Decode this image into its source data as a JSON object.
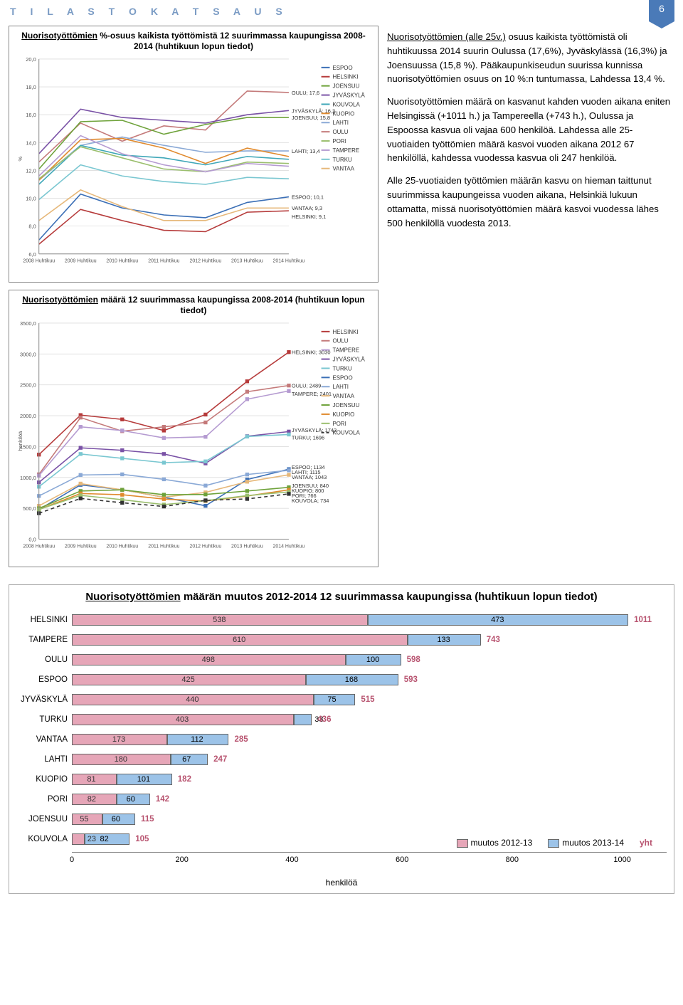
{
  "page_number": "6",
  "header": "T I L A S T O K A T S A U S",
  "colors": {
    "ESPOO": "#3b6fb6",
    "HELSINKI": "#b63b3b",
    "JOENSUU": "#6ea23a",
    "JYVÄSKYLÄ": "#7a52a6",
    "KOUVOLA": "#3fa7b8",
    "KUOPIO": "#e08a2e",
    "LAHTI": "#8aa9d6",
    "OULU": "#c47a7a",
    "PORI": "#9bbf6e",
    "TAMPERE": "#b59bd1",
    "TURKU": "#7ac7d1",
    "VANTAA": "#e6b87a"
  },
  "chart1": {
    "title_u": "Nuorisotyöttömien",
    "title_rest": " %-osuus kaikista työttömistä 12 suurimmassa kaupungissa 2008-2014 (huhtikuun lopun tiedot)",
    "years": [
      "2008 Huhtikuu",
      "2009 Huhtikuu",
      "2010 Huhtikuu",
      "2011 Huhtikuu",
      "2012 Huhtikuu",
      "2013 Huhtikuu",
      "2014 Huhtikuu"
    ],
    "ymin": 6.0,
    "ymax": 20.0,
    "ystep": 2.0,
    "ylabel": "%",
    "series": {
      "OULU": [
        12.6,
        15.4,
        14.1,
        15.2,
        14.9,
        17.7,
        17.6
      ],
      "JYVÄSKYLÄ": [
        13.2,
        16.4,
        15.8,
        15.6,
        15.4,
        16.0,
        16.3
      ],
      "JOENSUU": [
        12.1,
        15.5,
        15.6,
        14.6,
        15.3,
        15.8,
        15.8
      ],
      "LAHTI": [
        11.3,
        13.8,
        14.4,
        13.8,
        13.3,
        13.4,
        13.4
      ],
      "KUOPIO": [
        11.3,
        14.2,
        14.3,
        13.6,
        12.5,
        13.6,
        13.0
      ],
      "KOUVOLA": [
        11.0,
        13.8,
        13.1,
        12.9,
        12.4,
        13.0,
        12.8
      ],
      "PORI": [
        11.4,
        13.7,
        12.9,
        12.1,
        11.9,
        12.6,
        12.5
      ],
      "TAMPERE": [
        11.6,
        14.5,
        13.2,
        12.4,
        11.9,
        12.5,
        12.3
      ],
      "TURKU": [
        9.9,
        12.4,
        11.6,
        11.2,
        11.0,
        11.5,
        11.4
      ],
      "ESPOO": [
        7.0,
        10.3,
        9.3,
        8.8,
        8.6,
        9.7,
        10.1
      ],
      "VANTAA": [
        8.4,
        10.6,
        9.4,
        8.4,
        8.4,
        9.3,
        9.3
      ],
      "HELSINKI": [
        6.7,
        9.2,
        8.4,
        7.7,
        7.6,
        9.0,
        9.1
      ]
    },
    "end_labels": [
      {
        "t": "OULU; 17,6",
        "y": 17.6
      },
      {
        "t": "JYVÄSKYLÄ; 16,3",
        "y": 16.3
      },
      {
        "t": "JOENSUU; 15,8",
        "y": 15.8
      },
      {
        "t": "LAHTI; 13,4",
        "y": 13.4
      },
      {
        "t": "ESPOO; 10,1",
        "y": 10.1
      },
      {
        "t": "VANTAA; 9,3",
        "y": 9.3
      },
      {
        "t": "HELSINKI; 9,1",
        "y": 8.7
      }
    ],
    "legend_order": [
      "ESPOO",
      "HELSINKI",
      "JOENSUU",
      "JYVÄSKYLÄ",
      "KOUVOLA",
      "KUOPIO",
      "LAHTI",
      "OULU",
      "PORI",
      "TAMPERE",
      "TURKU",
      "VANTAA"
    ]
  },
  "chart2": {
    "title_u": "Nuorisotyöttömien",
    "title_rest": " määrä 12 suurimmassa kaupungissa 2008-2014 (huhtikuun lopun tiedot)",
    "years": [
      "2008 Huhtikuu",
      "2009 Huhtikuu",
      "2010 Huhtikuu",
      "2011 Huhtikuu",
      "2012 Huhtikuu",
      "2013 Huhtikuu",
      "2014 Huhtikuu"
    ],
    "ymin": 0,
    "ymax": 3500,
    "ystep": 500,
    "ylabel": "henkilöä",
    "series": {
      "HELSINKI": [
        1370,
        2010,
        1940,
        1760,
        2019,
        2557,
        3030
      ],
      "OULU": [
        1050,
        1970,
        1750,
        1820,
        1891,
        2389,
        2489
      ],
      "TAMPERE": [
        1030,
        1820,
        1760,
        1640,
        1658,
        2268,
        2401
      ],
      "JYVÄSKYLÄ": [
        920,
        1480,
        1440,
        1380,
        1228,
        1668,
        1743
      ],
      "TURKU": [
        850,
        1380,
        1310,
        1240,
        1260,
        1663,
        1696
      ],
      "ESPOO": [
        480,
        880,
        800,
        680,
        541,
        966,
        1134
      ],
      "LAHTI": [
        700,
        1040,
        1050,
        970,
        868,
        1048,
        1115
      ],
      "VANTAA": [
        540,
        900,
        800,
        680,
        758,
        931,
        1043
      ],
      "JOENSUU": [
        500,
        780,
        800,
        720,
        725,
        780,
        840
      ],
      "KUOPIO": [
        480,
        740,
        720,
        650,
        618,
        699,
        800
      ],
      "PORI": [
        480,
        710,
        640,
        560,
        624,
        706,
        766
      ],
      "KOUVOLA": [
        420,
        660,
        590,
        530,
        629,
        652,
        734
      ]
    },
    "kouvola_dash": true,
    "end_labels": [
      {
        "t": "HELSINKI; 3030",
        "y": 3030
      },
      {
        "t": "OULU; 2489",
        "y": 2489
      },
      {
        "t": "TAMPERE; 2401",
        "y": 2360
      },
      {
        "t": "JYVÄSKYLÄ; 1743",
        "y": 1770
      },
      {
        "t": "TURKU; 1696",
        "y": 1650
      },
      {
        "t": "ESPOO; 1134",
        "y": 1170
      },
      {
        "t": "LAHTI; 1115",
        "y": 1090
      },
      {
        "t": "VANTAA; 1043",
        "y": 1010
      },
      {
        "t": "JOENSUU; 840",
        "y": 870
      },
      {
        "t": "KUOPIO; 800",
        "y": 790
      },
      {
        "t": "PORI; 766",
        "y": 710
      },
      {
        "t": "KOUVOLA; 734",
        "y": 630
      }
    ],
    "legend_order": [
      "HELSINKI",
      "OULU",
      "TAMPERE",
      "JYVÄSKYLÄ",
      "TURKU",
      "ESPOO",
      "LAHTI",
      "VANTAA",
      "JOENSUU",
      "KUOPIO",
      "PORI",
      "KOUVOLA"
    ]
  },
  "paragraphs": {
    "p1a": "Nuorisotyöttömien (alle 25v.)",
    "p1b": " osuus kaikista työttömistä oli huhtikuussa 2014 suurin Oulussa (17,6%), Jyväskylässä (16,3%) ja Joensuussa (15,8 %). Pääkaupunkiseudun suurissa kunnissa nuorisotyöttömien osuus on 10 %:n tuntumassa, Lahdessa 13,4 %.",
    "p2": "Nuorisotyöttömien määrä on kasvanut kahden vuoden aikana eniten Helsingissä (+1011 h.) ja Tampereella (+743 h.), Oulussa ja Espoossa kasvua oli vajaa 600 henkilöä. Lahdessa alle 25-vuotiaiden työttömien määrä kasvoi vuoden aikana 2012 67 henkilöllä, kahdessa vuodessa kasvua oli 247 henkilöä.",
    "p3": "Alle 25-vuotiaiden työttömien määrän kasvu on hieman taittunut suurimmissa kaupungeissa vuoden aikana, Helsinkiä lukuun ottamatta, missä nuorisotyöttömien määrä kasvoi vuodessa lähes 500 henkilöllä vuodesta 2013."
  },
  "chart3": {
    "title_u": "Nuorisotyöttömien",
    "title_rest": " määrän muutos 2012-2014 12 suurimmassa kaupungissa (huhtikuun lopun tiedot)",
    "xmax": 1060,
    "xticks": [
      0,
      200,
      400,
      600,
      800,
      1000
    ],
    "xlabel": "henkilöä",
    "legend": {
      "a": "muutos 2012-13",
      "b": "muutos 2013-14",
      "c": "yht"
    },
    "colors": {
      "a": "#e6a6b8",
      "b": "#9cc3e8",
      "tot": "#b85470"
    },
    "rows": [
      {
        "cat": "HELSINKI",
        "a": 538,
        "b": 473,
        "t": 1011
      },
      {
        "cat": "TAMPERE",
        "a": 610,
        "b": 133,
        "t": 743
      },
      {
        "cat": "OULU",
        "a": 498,
        "b": 100,
        "t": 598
      },
      {
        "cat": "ESPOO",
        "a": 425,
        "b": 168,
        "t": 593
      },
      {
        "cat": "JYVÄSKYLÄ",
        "a": 440,
        "b": 75,
        "t": 515
      },
      {
        "cat": "TURKU",
        "a": 403,
        "b": 33,
        "t": 436
      },
      {
        "cat": "VANTAA",
        "a": 173,
        "b": 112,
        "t": 285
      },
      {
        "cat": "LAHTI",
        "a": 180,
        "b": 67,
        "t": 247
      },
      {
        "cat": "KUOPIO",
        "a": 81,
        "b": 101,
        "t": 182
      },
      {
        "cat": "PORI",
        "a": 82,
        "b": 60,
        "t": 142
      },
      {
        "cat": "JOENSUU",
        "a": 55,
        "b": 60,
        "t": 115
      },
      {
        "cat": "KOUVOLA",
        "a": 23,
        "b": 82,
        "t": 105
      }
    ]
  }
}
